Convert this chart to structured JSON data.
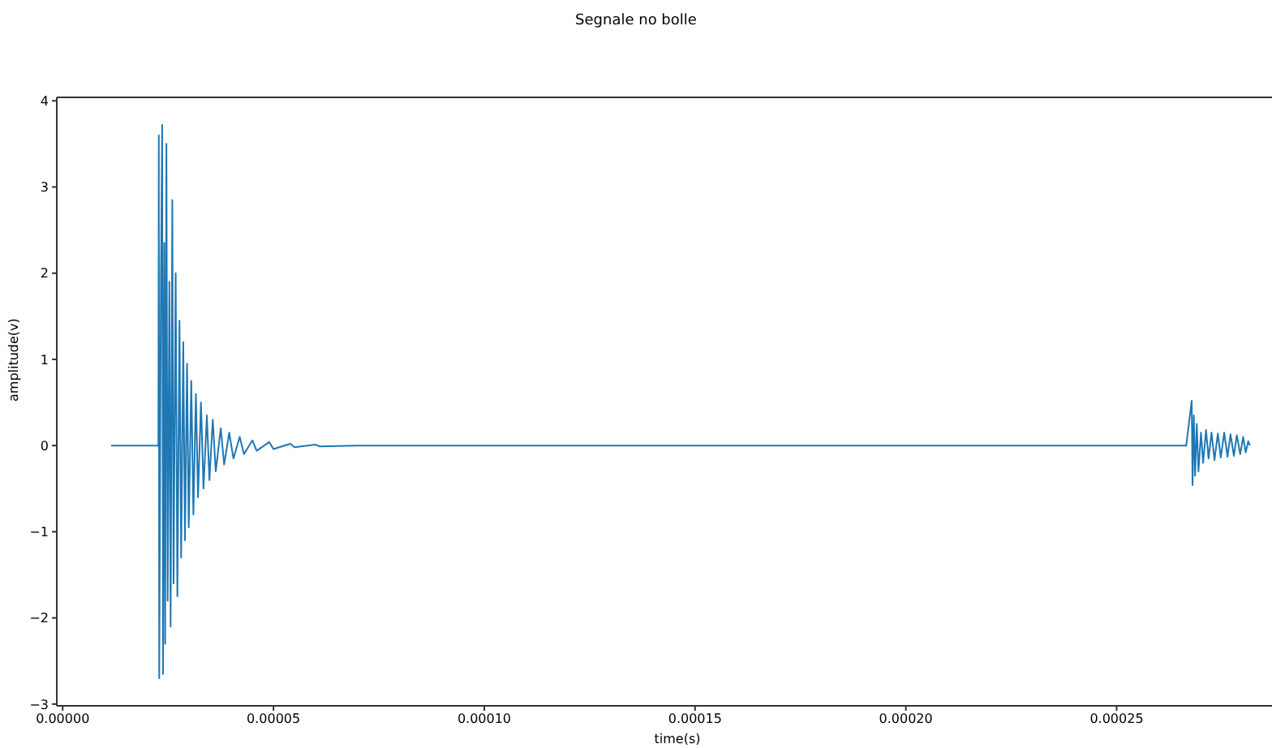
{
  "chart_data": {
    "type": "line",
    "title": "Segnale no bolle",
    "xlabel": "time(s)",
    "ylabel": "amplitude(v)",
    "x": [
      1.15e-05,
      2.27e-05,
      2.28e-05,
      2.29e-05,
      2.33e-05,
      2.36e-05,
      2.38e-05,
      2.41e-05,
      2.43e-05,
      2.46e-05,
      2.49e-05,
      2.53e-05,
      2.56e-05,
      2.6e-05,
      2.63e-05,
      2.68e-05,
      2.72e-05,
      2.77e-05,
      2.81e-05,
      2.86e-05,
      2.9e-05,
      2.95e-05,
      2.99e-05,
      3.05e-05,
      3.1e-05,
      3.16e-05,
      3.21e-05,
      3.28e-05,
      3.34e-05,
      3.42e-05,
      3.48e-05,
      3.56e-05,
      3.63e-05,
      3.75e-05,
      3.83e-05,
      3.95e-05,
      4.05e-05,
      4.2e-05,
      4.3e-05,
      4.5e-05,
      4.6e-05,
      4.9e-05,
      5e-05,
      5.4e-05,
      5.5e-05,
      6e-05,
      6.1e-05,
      7e-05,
      8e-05,
      0.000266,
      0.0002665,
      0.0002678,
      0.000268,
      0.0002683,
      0.0002686,
      0.000269,
      0.0002694,
      0.00027,
      0.0002705,
      0.0002712,
      0.0002718,
      0.0002725,
      0.0002732,
      0.000274,
      0.0002747,
      0.0002755,
      0.0002763,
      0.000277,
      0.0002778,
      0.0002785,
      0.0002793,
      0.00028,
      0.0002806,
      0.0002812,
      0.0002816
    ],
    "series": [
      {
        "color": "#1f77b4",
        "values": [
          0,
          0,
          3.6,
          -2.7,
          1.9,
          3.72,
          -2.65,
          2.35,
          -2.3,
          3.5,
          -1.8,
          1.9,
          -2.1,
          2.85,
          -1.6,
          2.0,
          -1.75,
          1.45,
          -1.3,
          1.2,
          -1.1,
          0.95,
          -0.95,
          0.75,
          -0.8,
          0.6,
          -0.6,
          0.5,
          -0.5,
          0.35,
          -0.4,
          0.3,
          -0.3,
          0.2,
          -0.22,
          0.15,
          -0.15,
          0.1,
          -0.1,
          0.06,
          -0.06,
          0.04,
          -0.04,
          0.02,
          -0.02,
          0.01,
          -0.01,
          0,
          0,
          0,
          0,
          0.52,
          -0.46,
          0.35,
          -0.35,
          0.25,
          -0.3,
          0.15,
          -0.2,
          0.18,
          -0.15,
          0.15,
          -0.17,
          0.14,
          -0.14,
          0.15,
          -0.13,
          0.13,
          -0.12,
          0.12,
          -0.1,
          0.1,
          -0.08,
          0.05,
          0
        ]
      }
    ],
    "xlim": [
      -1.4e-06,
      0.000293
    ],
    "xticks": [
      {
        "value": 0,
        "label": "0.00000"
      },
      {
        "value": 5e-05,
        "label": "0.00005"
      },
      {
        "value": 0.0001,
        "label": "0.00010"
      },
      {
        "value": 0.00015,
        "label": "0.00015"
      },
      {
        "value": 0.0002,
        "label": "0.00020"
      },
      {
        "value": 0.00025,
        "label": "0.00025"
      }
    ],
    "ylim": [
      -3.02,
      4.04
    ],
    "yticks": [
      -3,
      -2,
      -1,
      0,
      1,
      2,
      3,
      4
    ],
    "grid": false,
    "legend": false
  }
}
